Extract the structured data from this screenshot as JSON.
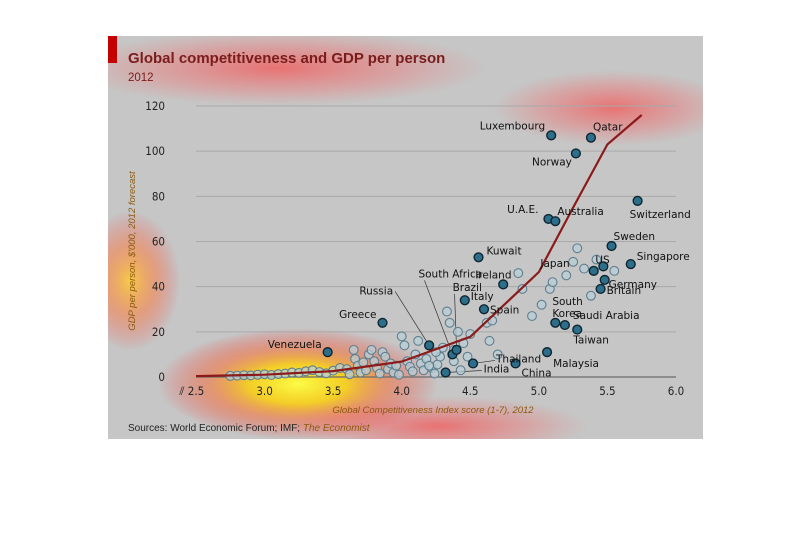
{
  "colors": {
    "panel_bg": "#c6c6c6",
    "accent_bar": "#c40000",
    "title": "#7a1c1c",
    "curve": "#8b1a1a",
    "labelled_point_fill": "#2d6e8a",
    "point_fill": "#b9cdd6",
    "gridline": "#a9a9a9"
  },
  "chart_data": {
    "type": "scatter",
    "title": "Global competitiveness and GDP per person",
    "subtitle": "2012",
    "xlabel": "Global Competitiveness Index score (1-7), 2012",
    "ylabel": "GDP per person, $'000, 2012 forecast",
    "xlim": [
      2.5,
      6.0
    ],
    "ylim": [
      0,
      120
    ],
    "x_ticks": [
      "2.5",
      "3.0",
      "3.5",
      "4.0",
      "4.5",
      "5.0",
      "5.5",
      "6.0"
    ],
    "y_ticks": [
      "0",
      "20",
      "40",
      "60",
      "80",
      "100",
      "120"
    ],
    "grid": "horizontal",
    "axis_break_symbol": "⫽",
    "source": "Sources: World Economic Forum; IMF; ",
    "source_italic": "The Economist",
    "labelled_points": [
      {
        "label": "Luxembourg",
        "x": 5.09,
        "y": 107
      },
      {
        "label": "Qatar",
        "x": 5.38,
        "y": 106
      },
      {
        "label": "Norway",
        "x": 5.27,
        "y": 99
      },
      {
        "label": "Switzerland",
        "x": 5.72,
        "y": 78
      },
      {
        "label": "U.A.E.",
        "x": 5.07,
        "y": 70
      },
      {
        "label": "Australia",
        "x": 5.12,
        "y": 69
      },
      {
        "label": "Sweden",
        "x": 5.53,
        "y": 58
      },
      {
        "label": "Singapore",
        "x": 5.67,
        "y": 50
      },
      {
        "label": "Kuwait",
        "x": 4.56,
        "y": 53
      },
      {
        "label": "Japan",
        "x": 5.4,
        "y": 47
      },
      {
        "label": "US",
        "x": 5.47,
        "y": 49
      },
      {
        "label": "Ireland",
        "x": 4.74,
        "y": 41
      },
      {
        "label": "Germany",
        "x": 5.48,
        "y": 43
      },
      {
        "label": "Britain",
        "x": 5.45,
        "y": 39
      },
      {
        "label": "Italy",
        "x": 4.46,
        "y": 34
      },
      {
        "label": "Spain",
        "x": 4.6,
        "y": 30
      },
      {
        "label": "South Korea",
        "x": 5.12,
        "y": 24
      },
      {
        "label": "Saudi Arabia",
        "x": 5.19,
        "y": 23
      },
      {
        "label": "Taiwan",
        "x": 5.28,
        "y": 21
      },
      {
        "label": "Greece",
        "x": 3.86,
        "y": 24
      },
      {
        "label": "Venezuela",
        "x": 3.46,
        "y": 11
      },
      {
        "label": "Malaysia",
        "x": 5.06,
        "y": 11
      },
      {
        "label": "Thailand",
        "x": 4.52,
        "y": 6
      },
      {
        "label": "China",
        "x": 4.83,
        "y": 6
      },
      {
        "label": "India",
        "x": 4.32,
        "y": 2
      },
      {
        "label": "South Africa",
        "x": 4.37,
        "y": 10
      },
      {
        "label": "Russia",
        "x": 4.2,
        "y": 14
      },
      {
        "label": "Brazil",
        "x": 4.4,
        "y": 12
      }
    ],
    "other_points": [
      {
        "x": 2.75,
        "y": 0.5
      },
      {
        "x": 2.8,
        "y": 0.6
      },
      {
        "x": 2.85,
        "y": 0.8
      },
      {
        "x": 2.9,
        "y": 0.7
      },
      {
        "x": 2.95,
        "y": 1.0
      },
      {
        "x": 3.0,
        "y": 1.2
      },
      {
        "x": 3.05,
        "y": 0.9
      },
      {
        "x": 3.1,
        "y": 1.3
      },
      {
        "x": 3.15,
        "y": 1.5
      },
      {
        "x": 3.2,
        "y": 2.0
      },
      {
        "x": 3.25,
        "y": 1.8
      },
      {
        "x": 3.3,
        "y": 2.5
      },
      {
        "x": 3.35,
        "y": 3.0
      },
      {
        "x": 3.4,
        "y": 2.2
      },
      {
        "x": 3.45,
        "y": 1.6
      },
      {
        "x": 3.5,
        "y": 2.8
      },
      {
        "x": 3.55,
        "y": 4.0
      },
      {
        "x": 3.6,
        "y": 3.5
      },
      {
        "x": 3.62,
        "y": 1.2
      },
      {
        "x": 3.65,
        "y": 12.0
      },
      {
        "x": 3.66,
        "y": 8.0
      },
      {
        "x": 3.68,
        "y": 5.0
      },
      {
        "x": 3.7,
        "y": 2.0
      },
      {
        "x": 3.72,
        "y": 6.5
      },
      {
        "x": 3.74,
        "y": 3.0
      },
      {
        "x": 3.76,
        "y": 10.0
      },
      {
        "x": 3.78,
        "y": 12.0
      },
      {
        "x": 3.8,
        "y": 7.0
      },
      {
        "x": 3.82,
        "y": 4.0
      },
      {
        "x": 3.84,
        "y": 1.5
      },
      {
        "x": 3.86,
        "y": 11.0
      },
      {
        "x": 3.88,
        "y": 9.0
      },
      {
        "x": 3.9,
        "y": 3.5
      },
      {
        "x": 3.92,
        "y": 6.0
      },
      {
        "x": 3.94,
        "y": 2.0
      },
      {
        "x": 3.96,
        "y": 5.0
      },
      {
        "x": 3.98,
        "y": 1.0
      },
      {
        "x": 4.0,
        "y": 18.0
      },
      {
        "x": 4.02,
        "y": 14.0
      },
      {
        "x": 4.04,
        "y": 7.0
      },
      {
        "x": 4.06,
        "y": 4.5
      },
      {
        "x": 4.08,
        "y": 2.5
      },
      {
        "x": 4.1,
        "y": 10.0
      },
      {
        "x": 4.12,
        "y": 16.0
      },
      {
        "x": 4.14,
        "y": 6.0
      },
      {
        "x": 4.16,
        "y": 3.0
      },
      {
        "x": 4.18,
        "y": 8.0
      },
      {
        "x": 4.22,
        "y": 4.0
      },
      {
        "x": 4.24,
        "y": 1.5
      },
      {
        "x": 4.26,
        "y": 5.5
      },
      {
        "x": 4.28,
        "y": 9.0
      },
      {
        "x": 4.3,
        "y": 13.0
      },
      {
        "x": 4.33,
        "y": 29.0
      },
      {
        "x": 4.35,
        "y": 24.0
      },
      {
        "x": 4.38,
        "y": 7.0
      },
      {
        "x": 4.41,
        "y": 20.0
      },
      {
        "x": 4.43,
        "y": 3.0
      },
      {
        "x": 4.45,
        "y": 15.0
      },
      {
        "x": 4.48,
        "y": 9.0
      },
      {
        "x": 4.5,
        "y": 19.0
      },
      {
        "x": 4.62,
        "y": 24.0
      },
      {
        "x": 4.64,
        "y": 16.0
      },
      {
        "x": 4.66,
        "y": 25.0
      },
      {
        "x": 4.7,
        "y": 10.0
      },
      {
        "x": 4.85,
        "y": 46.0
      },
      {
        "x": 4.88,
        "y": 39.0
      },
      {
        "x": 4.95,
        "y": 27.0
      },
      {
        "x": 5.02,
        "y": 32.0
      },
      {
        "x": 5.08,
        "y": 39.0
      },
      {
        "x": 5.1,
        "y": 42.0
      },
      {
        "x": 5.2,
        "y": 45.0
      },
      {
        "x": 5.25,
        "y": 51.0
      },
      {
        "x": 5.28,
        "y": 57.0
      },
      {
        "x": 5.33,
        "y": 48.0
      },
      {
        "x": 5.38,
        "y": 36.0
      },
      {
        "x": 5.42,
        "y": 52.0
      },
      {
        "x": 5.55,
        "y": 47.0
      },
      {
        "x": 4.38,
        "y": 12.0
      },
      {
        "x": 4.25,
        "y": 11.0
      },
      {
        "x": 4.2,
        "y": 5.0
      }
    ],
    "trend_curve": {
      "type": "exponential",
      "x": [
        2.5,
        3.0,
        3.5,
        4.0,
        4.5,
        5.0,
        5.25,
        5.5,
        5.75
      ],
      "y": [
        0.4,
        1.0,
        2.6,
        6.8,
        17.8,
        46.5,
        75,
        103,
        116
      ]
    }
  }
}
